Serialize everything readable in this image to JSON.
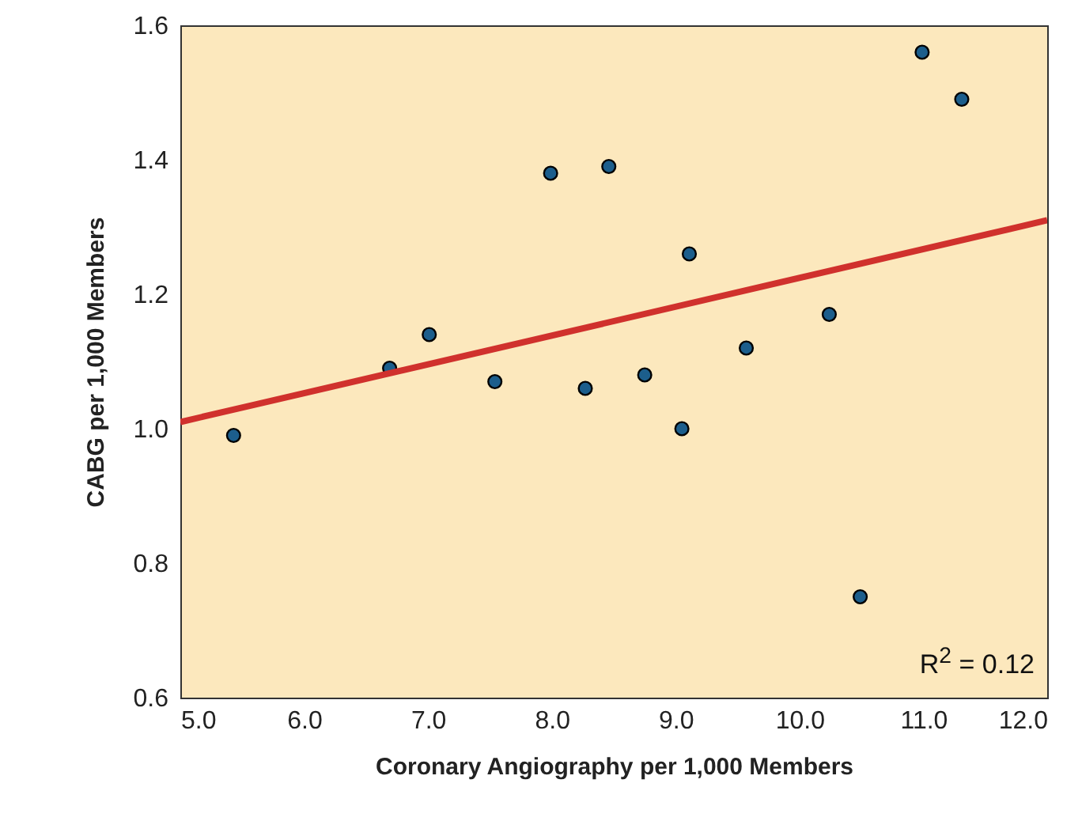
{
  "chart_data": {
    "type": "scatter",
    "xlabel": "Coronary Angiography per 1,000 Members",
    "ylabel": "CABG per 1,000 Members",
    "xlim": [
      5.0,
      12.0
    ],
    "ylim": [
      0.6,
      1.6
    ],
    "xticks": [
      {
        "value": 5,
        "label": "5.0"
      },
      {
        "value": 6,
        "label": "6.0"
      },
      {
        "value": 7,
        "label": "7.0"
      },
      {
        "value": 8,
        "label": "8.0"
      },
      {
        "value": 9,
        "label": "9.0"
      },
      {
        "value": 10,
        "label": "10.0"
      },
      {
        "value": 11,
        "label": "11.0"
      },
      {
        "value": 12,
        "label": "12.0"
      }
    ],
    "yticks": [
      {
        "value": 0.6,
        "label": "0.6"
      },
      {
        "value": 0.8,
        "label": "0.8"
      },
      {
        "value": 1.0,
        "label": "1.0"
      },
      {
        "value": 1.2,
        "label": "1.2"
      },
      {
        "value": 1.4,
        "label": "1.4"
      },
      {
        "value": 1.6,
        "label": "1.6"
      }
    ],
    "series": [
      {
        "marker": "circle",
        "color": "#1c5e8c",
        "x": [
          5.43,
          6.69,
          7.01,
          7.54,
          7.99,
          8.27,
          8.46,
          8.75,
          9.05,
          9.11,
          9.57,
          10.24,
          10.49,
          10.99,
          11.31
        ],
        "values": [
          0.99,
          1.09,
          1.14,
          1.07,
          1.38,
          1.06,
          1.39,
          1.08,
          1.0,
          1.26,
          1.12,
          1.17,
          0.75,
          1.56,
          1.49
        ]
      },
      {
        "type": "line",
        "color": "#d0312d",
        "x": [
          5.0,
          12.0
        ],
        "values": [
          1.01,
          1.31
        ]
      }
    ],
    "annotations": [
      "R$^{2}$ = 0.12"
    ]
  }
}
